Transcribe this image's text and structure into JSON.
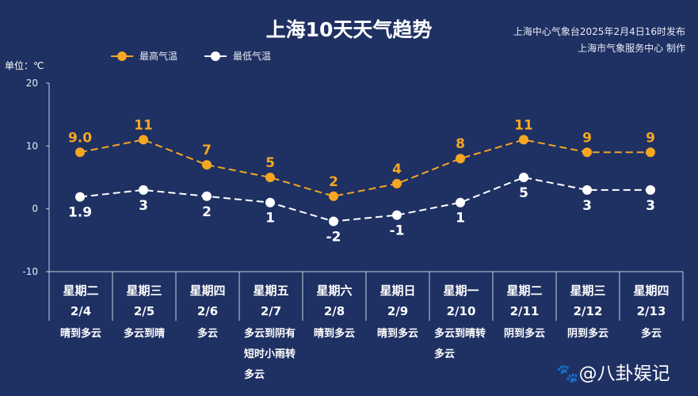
{
  "chart_data": {
    "type": "line",
    "title": "上海10天天气趋势",
    "source_lines": [
      "上海中心气象台2025年2月4日16时发布",
      "上海市气象服务中心 制作"
    ],
    "ylabel": "单位：℃",
    "ylim": [
      -10,
      20
    ],
    "yticks": [
      "20",
      "10",
      "0",
      "-10"
    ],
    "grid": false,
    "legend_position": "top-left",
    "categories": [
      {
        "weekday": "星期二",
        "date": "2/4",
        "weather": [
          "晴到多云"
        ]
      },
      {
        "weekday": "星期三",
        "date": "2/5",
        "weather": [
          "多云到晴"
        ]
      },
      {
        "weekday": "星期四",
        "date": "2/6",
        "weather": [
          "多云"
        ]
      },
      {
        "weekday": "星期五",
        "date": "2/7",
        "weather": [
          "多云到阴有",
          "短时小雨转",
          "多云"
        ]
      },
      {
        "weekday": "星期六",
        "date": "2/8",
        "weather": [
          "晴到多云"
        ]
      },
      {
        "weekday": "星期日",
        "date": "2/9",
        "weather": [
          "晴到多云"
        ]
      },
      {
        "weekday": "星期一",
        "date": "2/10",
        "weather": [
          "多云到晴转",
          "多云"
        ]
      },
      {
        "weekday": "星期二",
        "date": "2/11",
        "weather": [
          "阴到多云"
        ]
      },
      {
        "weekday": "星期三",
        "date": "2/12",
        "weather": [
          "阴到多云"
        ]
      },
      {
        "weekday": "星期四",
        "date": "2/13",
        "weather": [
          "多云"
        ]
      }
    ],
    "series": [
      {
        "name": "最高气温",
        "color": "#f5a623",
        "values": [
          9,
          11,
          7,
          5,
          2,
          4,
          8,
          11,
          9,
          9
        ],
        "labels": [
          "9.0",
          "11",
          "7",
          "5",
          "2",
          "4",
          "8",
          "11",
          "9",
          "9"
        ]
      },
      {
        "name": "最低气温",
        "color": "#ffffff",
        "values": [
          1.9,
          3,
          2,
          1,
          -2,
          -1,
          1,
          5,
          3,
          3
        ],
        "labels": [
          "1.9",
          "3",
          "2",
          "1",
          "-2",
          "-1",
          "1",
          "5",
          "3",
          "3"
        ]
      }
    ]
  },
  "watermark": "@八卦娱记"
}
